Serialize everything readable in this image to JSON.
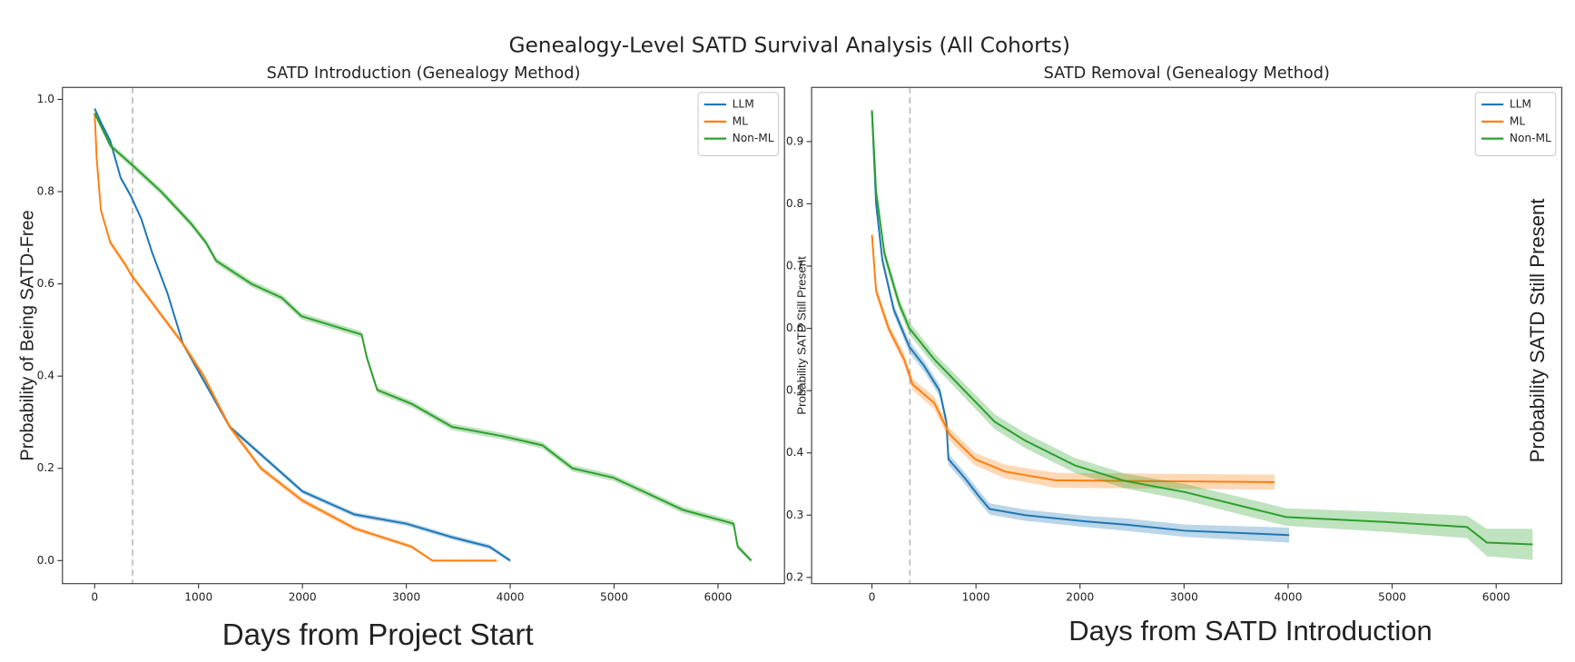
{
  "title": "Genealogy-Level SATD Survival Analysis (All Cohorts)",
  "chart_data": [
    {
      "type": "line",
      "title": "SATD Introduction (Genealogy Method)",
      "xlabel": "Days from Project Start",
      "ylabel": "Probability of Being SATD-Free",
      "xlim": [
        -310,
        6640
      ],
      "ylim": [
        -0.05,
        1.026
      ],
      "xticks": [
        0,
        1000,
        2000,
        3000,
        4000,
        5000,
        6000
      ],
      "yticks": [
        {
          "value": 0.0,
          "label": "0.0"
        },
        {
          "value": 0.2,
          "label": "0.2"
        },
        {
          "value": 0.4,
          "label": "0.4"
        },
        {
          "value": 0.6,
          "label": "0.6"
        },
        {
          "value": 0.8,
          "label": "0.8"
        },
        {
          "value": 1.0,
          "label": "1.0"
        }
      ],
      "vline": 365,
      "legend": "upper right",
      "series": [
        {
          "name": "LLM",
          "color": "#1f77b4",
          "x": [
            0,
            60,
            150,
            250,
            350,
            450,
            550,
            700,
            850,
            1000,
            1150,
            1300,
            1600,
            2000,
            2500,
            3000,
            3450,
            3800,
            4000
          ],
          "values": [
            0.98,
            0.95,
            0.91,
            0.83,
            0.79,
            0.74,
            0.67,
            0.58,
            0.47,
            0.41,
            0.35,
            0.29,
            0.23,
            0.15,
            0.1,
            0.08,
            0.05,
            0.03,
            0.0
          ],
          "ci": [
            0.004,
            0.005,
            0.005,
            0.005,
            0.005,
            0.005,
            0.005,
            0.005,
            0.005,
            0.005,
            0.005,
            0.005,
            0.005,
            0.005,
            0.005,
            0.005,
            0.005,
            0.005,
            0.004
          ]
        },
        {
          "name": "ML",
          "color": "#ff7f0e",
          "x": [
            0,
            20,
            60,
            150,
            300,
            350,
            550,
            850,
            1050,
            1300,
            1600,
            2000,
            2500,
            3050,
            3250,
            3870
          ],
          "values": [
            0.97,
            0.87,
            0.76,
            0.69,
            0.64,
            0.62,
            0.56,
            0.47,
            0.4,
            0.29,
            0.2,
            0.13,
            0.07,
            0.03,
            0.0,
            0.0
          ],
          "ci": [
            0.004,
            0.006,
            0.006,
            0.006,
            0.006,
            0.006,
            0.006,
            0.006,
            0.006,
            0.006,
            0.006,
            0.006,
            0.005,
            0.004,
            0.002,
            0.002
          ]
        },
        {
          "name": "Non-ML",
          "color": "#2ca02c",
          "x": [
            0,
            150,
            350,
            640,
            930,
            1070,
            1170,
            1510,
            1800,
            1990,
            2280,
            2570,
            2620,
            2720,
            3050,
            3440,
            3920,
            4310,
            4600,
            4990,
            5280,
            5660,
            6150,
            6190,
            6320
          ],
          "values": [
            0.97,
            0.9,
            0.86,
            0.8,
            0.73,
            0.69,
            0.65,
            0.6,
            0.57,
            0.53,
            0.51,
            0.49,
            0.44,
            0.37,
            0.34,
            0.29,
            0.27,
            0.25,
            0.2,
            0.18,
            0.15,
            0.11,
            0.08,
            0.03,
            0.0
          ],
          "ci": [
            0.004,
            0.006,
            0.007,
            0.007,
            0.007,
            0.007,
            0.007,
            0.007,
            0.007,
            0.007,
            0.007,
            0.007,
            0.007,
            0.007,
            0.007,
            0.007,
            0.007,
            0.007,
            0.007,
            0.007,
            0.007,
            0.007,
            0.007,
            0.006,
            0.004
          ]
        }
      ]
    },
    {
      "type": "line",
      "title": "SATD Removal (Genealogy Method)",
      "xlabel": "Days from SATD Introduction",
      "ylabel": "Probability SATD Still Present",
      "ylabel_right": "Probability SATD Still Present",
      "xlim": [
        -580,
        6630
      ],
      "ylim": [
        0.19,
        0.987
      ],
      "xticks": [
        0,
        1000,
        2000,
        3000,
        4000,
        5000,
        6000
      ],
      "yticks": [
        0.2,
        0.3,
        0.4,
        0.5,
        0.6,
        0.7,
        0.8,
        0.9
      ],
      "vline": 365,
      "legend": "upper right",
      "series": [
        {
          "name": "LLM",
          "color": "#1f77b4",
          "x": [
            0,
            40,
            100,
            210,
            360,
            500,
            650,
            715,
            735,
            890,
            1030,
            1130,
            1470,
            2050,
            2430,
            3010,
            4010
          ],
          "values": [
            0.95,
            0.8,
            0.71,
            0.63,
            0.57,
            0.54,
            0.5,
            0.45,
            0.39,
            0.36,
            0.33,
            0.31,
            0.3,
            0.29,
            0.285,
            0.275,
            0.268
          ],
          "ci": [
            0.005,
            0.008,
            0.008,
            0.008,
            0.009,
            0.009,
            0.009,
            0.009,
            0.009,
            0.009,
            0.009,
            0.009,
            0.009,
            0.009,
            0.01,
            0.01,
            0.012
          ]
        },
        {
          "name": "ML",
          "color": "#ff7f0e",
          "x": [
            0,
            40,
            160,
            310,
            390,
            600,
            745,
            990,
            1280,
            1760,
            3870
          ],
          "values": [
            0.75,
            0.66,
            0.6,
            0.55,
            0.51,
            0.48,
            0.43,
            0.39,
            0.37,
            0.356,
            0.353
          ],
          "ci": [
            0.005,
            0.008,
            0.008,
            0.009,
            0.009,
            0.01,
            0.01,
            0.01,
            0.011,
            0.012,
            0.012
          ]
        },
        {
          "name": "Non-ML",
          "color": "#2ca02c",
          "x": [
            0,
            40,
            120,
            260,
            360,
            600,
            890,
            1180,
            1470,
            1950,
            2430,
            3010,
            3590,
            3980,
            4950,
            5720,
            5910,
            6350
          ],
          "values": [
            0.95,
            0.82,
            0.72,
            0.64,
            0.6,
            0.55,
            0.5,
            0.45,
            0.42,
            0.38,
            0.355,
            0.337,
            0.313,
            0.297,
            0.289,
            0.281,
            0.256,
            0.253
          ],
          "ci": [
            0.005,
            0.01,
            0.01,
            0.01,
            0.01,
            0.01,
            0.011,
            0.012,
            0.012,
            0.012,
            0.012,
            0.013,
            0.014,
            0.014,
            0.016,
            0.018,
            0.022,
            0.025
          ]
        }
      ]
    }
  ]
}
